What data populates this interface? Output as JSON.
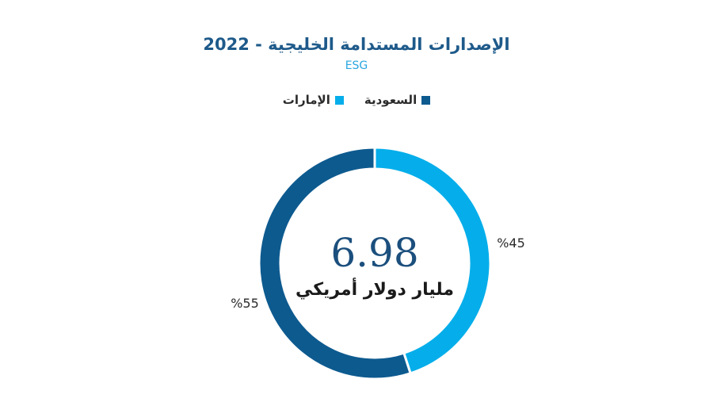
{
  "chart_data": {
    "type": "pie",
    "title": "الإصدارات المستدامة الخليجية - 2022",
    "subtitle": "ESG",
    "categories": [
      "السعودية",
      "الإمارات"
    ],
    "values": [
      55,
      45
    ],
    "value_labels": [
      "%55",
      "%45"
    ],
    "colors": [
      "#0d5a8f",
      "#05aeea"
    ],
    "legend_position": "top",
    "center_value": "6.98",
    "center_label": "مليار دولار أمريكي"
  }
}
